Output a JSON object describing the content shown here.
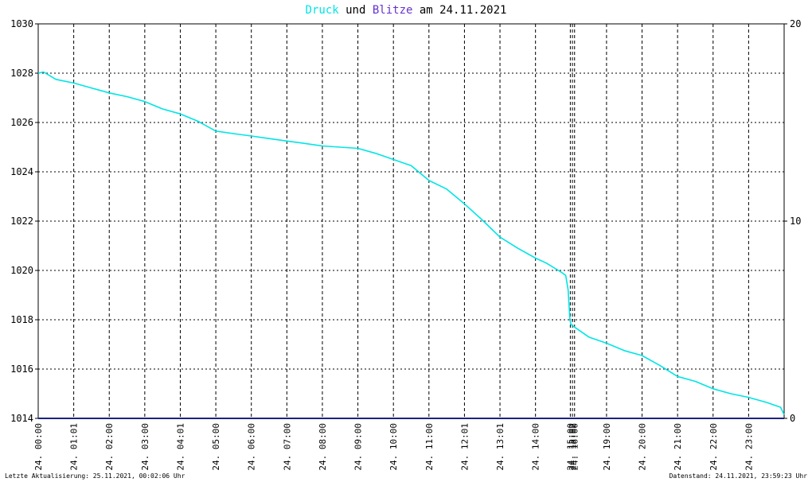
{
  "title": {
    "part1": "Druck",
    "part2": " und ",
    "part3": "Blitze",
    "part4": " am 24.11.2021",
    "color1": "#00e5e5",
    "color3": "#6633cc"
  },
  "footer": {
    "left": "Letzte Aktualisierung: 25.11.2021, 00:02:06 Uhr",
    "right": "Datenstand: 24.11.2021, 23:59:23 Uhr"
  },
  "chart_data": {
    "type": "line",
    "title": "Druck und Blitze am 24.11.2021",
    "xlabel": "",
    "ylabel": "",
    "grid": true,
    "xlim_hours": [
      0,
      24
    ],
    "ylim_left": [
      1014,
      1030
    ],
    "ylim_right": [
      0,
      20
    ],
    "y_ticks_left": [
      "1014",
      "1016",
      "1018",
      "1020",
      "1022",
      "1024",
      "1026",
      "1028",
      "1030"
    ],
    "y_ticks_right": [
      "0",
      "10",
      "20"
    ],
    "x_tick_labels": [
      {
        "hour": 0.0,
        "label": "24. 00:00"
      },
      {
        "hour": 1.0,
        "label": "24. 01:01"
      },
      {
        "hour": 2.0,
        "label": "24. 02:00"
      },
      {
        "hour": 3.0,
        "label": "24. 03:00"
      },
      {
        "hour": 4.0,
        "label": "24. 04:01"
      },
      {
        "hour": 5.0,
        "label": "24. 05:00"
      },
      {
        "hour": 6.0,
        "label": "24. 06:00"
      },
      {
        "hour": 7.0,
        "label": "24. 07:00"
      },
      {
        "hour": 8.0,
        "label": "24. 08:00"
      },
      {
        "hour": 9.0,
        "label": "24. 09:00"
      },
      {
        "hour": 10.0,
        "label": "24. 10:00"
      },
      {
        "hour": 11.0,
        "label": "24. 11:00"
      },
      {
        "hour": 12.0,
        "label": "24. 12:01"
      },
      {
        "hour": 13.0,
        "label": "24. 13:01"
      },
      {
        "hour": 14.0,
        "label": "24. 14:00"
      },
      {
        "hour": 14.98,
        "label": "24. 15:00"
      },
      {
        "hour": 15.04,
        "label": "24. 15:02"
      },
      {
        "hour": 15.1,
        "label": "24. 16:00"
      },
      {
        "hour": 16.0,
        "label": "24. 19:00"
      },
      {
        "hour": 17.0,
        "label": "24. 20:00"
      },
      {
        "hour": 18.0,
        "label": "24. 21:00"
      },
      {
        "hour": 19.0,
        "label": "24. 22:00"
      },
      {
        "hour": 20.0,
        "label": "24. 23:00"
      }
    ],
    "series": [
      {
        "name": "Druck",
        "color": "#00e5e5",
        "axis": "left",
        "points": [
          [
            0.0,
            1028.0
          ],
          [
            0.15,
            1028.05
          ],
          [
            0.5,
            1027.75
          ],
          [
            1.0,
            1027.6
          ],
          [
            1.5,
            1027.4
          ],
          [
            2.0,
            1027.2
          ],
          [
            2.5,
            1027.05
          ],
          [
            3.0,
            1026.85
          ],
          [
            3.5,
            1026.55
          ],
          [
            4.0,
            1026.35
          ],
          [
            4.5,
            1026.05
          ],
          [
            5.0,
            1025.65
          ],
          [
            5.5,
            1025.55
          ],
          [
            6.0,
            1025.45
          ],
          [
            6.5,
            1025.35
          ],
          [
            7.0,
            1025.25
          ],
          [
            7.5,
            1025.15
          ],
          [
            8.0,
            1025.05
          ],
          [
            8.5,
            1025.0
          ],
          [
            9.0,
            1024.95
          ],
          [
            9.5,
            1024.75
          ],
          [
            10.0,
            1024.5
          ],
          [
            10.5,
            1024.25
          ],
          [
            11.0,
            1023.65
          ],
          [
            11.5,
            1023.3
          ],
          [
            12.0,
            1022.7
          ],
          [
            12.5,
            1022.05
          ],
          [
            13.0,
            1021.35
          ],
          [
            13.5,
            1020.9
          ],
          [
            14.0,
            1020.5
          ],
          [
            14.3,
            1020.3
          ],
          [
            14.7,
            1019.95
          ],
          [
            14.85,
            1019.8
          ],
          [
            14.92,
            1019.2
          ],
          [
            14.97,
            1018.0
          ],
          [
            15.0,
            1017.8
          ],
          [
            15.5,
            1017.3
          ],
          [
            16.0,
            1017.05
          ],
          [
            16.5,
            1016.75
          ],
          [
            17.0,
            1016.55
          ],
          [
            17.5,
            1016.15
          ],
          [
            18.0,
            1015.7
          ],
          [
            18.5,
            1015.5
          ],
          [
            19.0,
            1015.2
          ],
          [
            19.5,
            1015.0
          ],
          [
            20.0,
            1014.85
          ],
          [
            20.5,
            1014.65
          ],
          [
            20.9,
            1014.45
          ],
          [
            21.0,
            1014.15
          ]
        ]
      },
      {
        "name": "Blitze",
        "color": "#1a237e",
        "axis": "right",
        "points": [
          [
            0.0,
            0
          ],
          [
            21.0,
            0
          ]
        ]
      }
    ]
  }
}
